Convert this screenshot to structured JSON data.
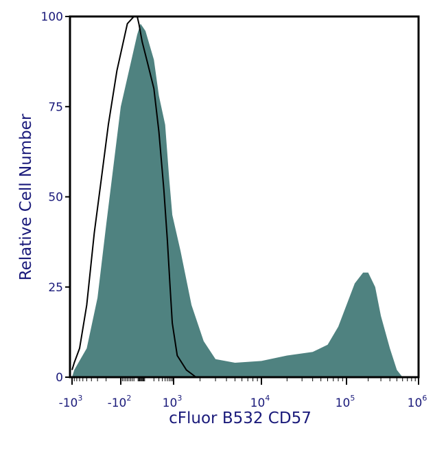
{
  "chart_data": {
    "type": "area",
    "title": "",
    "xlabel": "cFluor B532 CD57",
    "ylabel": "Relative Cell Number",
    "x_scale": "biexponential",
    "xlim": [
      -1000,
      1000000
    ],
    "ylim": [
      0,
      100
    ],
    "grid": false,
    "legend": "none",
    "y_ticks": [
      {
        "value": 0,
        "label": "0"
      },
      {
        "value": 25,
        "label": "25"
      },
      {
        "value": 50,
        "label": "50"
      },
      {
        "value": 75,
        "label": "75"
      },
      {
        "value": 100,
        "label": "100"
      }
    ],
    "x_ticks": [
      {
        "value": -1000,
        "base": "-10",
        "exp": "3"
      },
      {
        "value": -100,
        "base": "-10",
        "exp": "2"
      },
      {
        "value": 1000,
        "base": "10",
        "exp": "3"
      },
      {
        "value": 10000,
        "base": "10",
        "exp": "4"
      },
      {
        "value": 100000,
        "base": "10",
        "exp": "5"
      },
      {
        "value": 1000000,
        "base": "10",
        "exp": "6"
      }
    ],
    "series": [
      {
        "style": "filled",
        "color": "#4f8280",
        "points": [
          [
            -1000,
            0
          ],
          [
            -900,
            2
          ],
          [
            -500,
            8
          ],
          [
            -300,
            22
          ],
          [
            -200,
            42
          ],
          [
            -100,
            75
          ],
          [
            0,
            95
          ],
          [
            40,
            98
          ],
          [
            100,
            96
          ],
          [
            200,
            88
          ],
          [
            300,
            78
          ],
          [
            500,
            70
          ],
          [
            700,
            55
          ],
          [
            900,
            45
          ],
          [
            1200,
            35
          ],
          [
            1600,
            20
          ],
          [
            2200,
            10
          ],
          [
            3000,
            5
          ],
          [
            5000,
            4
          ],
          [
            10000,
            4.5
          ],
          [
            20000,
            6
          ],
          [
            40000,
            7
          ],
          [
            60000,
            9
          ],
          [
            80000,
            14
          ],
          [
            100000,
            20
          ],
          [
            130000,
            26
          ],
          [
            170000,
            29
          ],
          [
            200000,
            29
          ],
          [
            250000,
            25
          ],
          [
            300000,
            17
          ],
          [
            400000,
            8
          ],
          [
            500000,
            2
          ],
          [
            600000,
            0
          ]
        ]
      },
      {
        "style": "outline",
        "color": "#000000",
        "points": [
          [
            -1000,
            2
          ],
          [
            -900,
            4
          ],
          [
            -700,
            8
          ],
          [
            -500,
            20
          ],
          [
            -350,
            40
          ],
          [
            -250,
            55
          ],
          [
            -180,
            70
          ],
          [
            -120,
            85
          ],
          [
            -60,
            98
          ],
          [
            -20,
            100
          ],
          [
            0,
            100
          ],
          [
            20,
            98
          ],
          [
            60,
            93
          ],
          [
            120,
            87
          ],
          [
            200,
            80
          ],
          [
            300,
            68
          ],
          [
            450,
            52
          ],
          [
            600,
            38
          ],
          [
            750,
            25
          ],
          [
            900,
            15
          ],
          [
            1100,
            6
          ],
          [
            1400,
            2
          ],
          [
            1800,
            0
          ]
        ]
      }
    ]
  }
}
